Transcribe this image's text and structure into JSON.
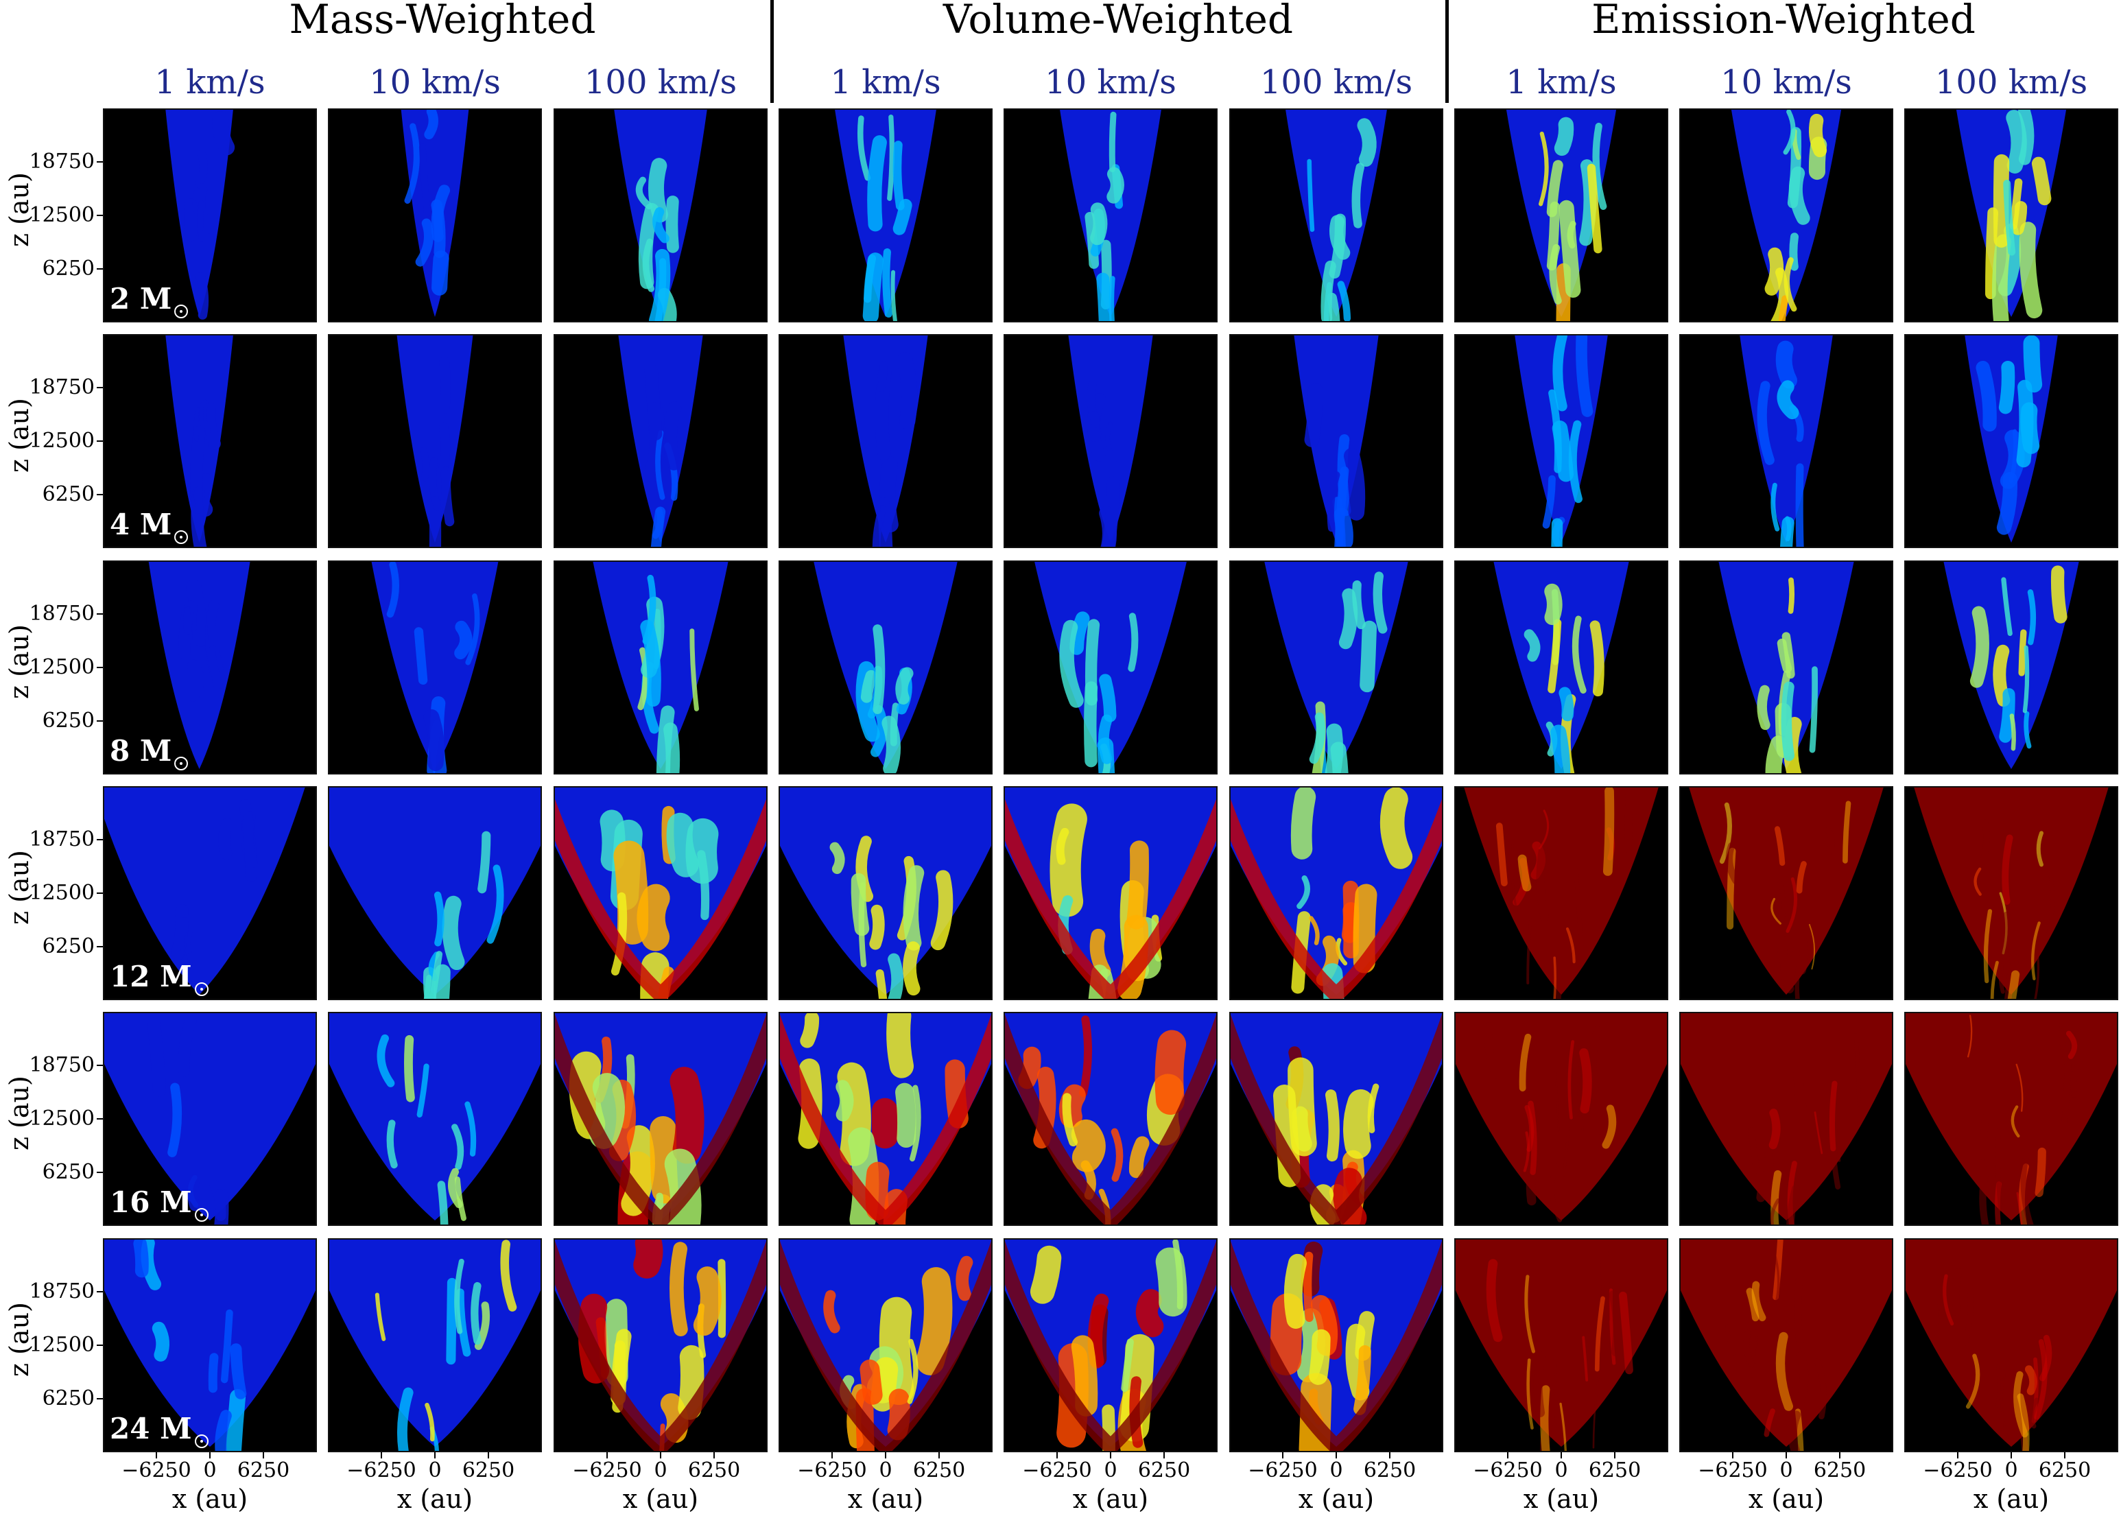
{
  "chart_data": {
    "type": "heatmap",
    "group_titles": [
      "Mass-Weighted",
      "Volume-Weighted",
      "Emission-Weighted"
    ],
    "column_labels": [
      "1 km/s",
      "10 km/s",
      "100 km/s",
      "1 km/s",
      "10 km/s",
      "100 km/s",
      "1 km/s",
      "10 km/s",
      "100 km/s"
    ],
    "row_labels": [
      "2 M",
      "4 M",
      "8 M",
      "12 M",
      "16 M",
      "24 M"
    ],
    "ylabel": "z (au)",
    "xlabel": "x (au)",
    "yticks": [
      "18750",
      "12500",
      "6250"
    ],
    "xticks": [
      "−6250",
      "0",
      "6250"
    ],
    "colormap": [
      "#0a1bd6",
      "#0050ff",
      "#00b4ff",
      "#3fe0d0",
      "#a8f06a",
      "#f0f020",
      "#ffb000",
      "#ff4a00",
      "#c80000",
      "#7d0000"
    ],
    "background_color": "#000000",
    "rows": [
      {
        "mass": "2 M",
        "cone_half_width": [
          0.16,
          0.16,
          0.22,
          0.24,
          0.24,
          0.24,
          0.26,
          0.26,
          0.26
        ],
        "levels": [
          0.05,
          0.15,
          0.3,
          0.32,
          0.32,
          0.34,
          0.5,
          0.5,
          0.5
        ]
      },
      {
        "mass": "4 M",
        "cone_half_width": [
          0.16,
          0.18,
          0.2,
          0.2,
          0.2,
          0.2,
          0.22,
          0.22,
          0.22
        ],
        "levels": [
          0.03,
          0.06,
          0.1,
          0.08,
          0.08,
          0.1,
          0.22,
          0.22,
          0.22
        ]
      },
      {
        "mass": "8 M",
        "cone_half_width": [
          0.24,
          0.3,
          0.32,
          0.34,
          0.36,
          0.34,
          0.32,
          0.32,
          0.32
        ],
        "levels": [
          0.04,
          0.14,
          0.32,
          0.3,
          0.32,
          0.34,
          0.45,
          0.45,
          0.45
        ]
      },
      {
        "mass": "12 M",
        "cone_half_width": [
          0.5,
          0.62,
          0.62,
          0.62,
          0.62,
          0.62,
          0.46,
          0.46,
          0.46
        ],
        "levels": [
          0.06,
          0.3,
          0.55,
          0.5,
          0.55,
          0.58,
          0.92,
          0.92,
          0.92
        ]
      },
      {
        "mass": "16 M",
        "cone_half_width": [
          0.6,
          0.6,
          0.6,
          0.6,
          0.6,
          0.6,
          0.6,
          0.6,
          0.6
        ],
        "levels": [
          0.1,
          0.36,
          0.68,
          0.62,
          0.68,
          0.72,
          0.97,
          0.97,
          0.97
        ]
      },
      {
        "mass": "24 M",
        "cone_half_width": [
          0.6,
          0.6,
          0.6,
          0.6,
          0.6,
          0.6,
          0.6,
          0.6,
          0.6
        ],
        "levels": [
          0.2,
          0.42,
          0.7,
          0.66,
          0.72,
          0.74,
          0.96,
          0.96,
          0.96
        ]
      }
    ]
  }
}
